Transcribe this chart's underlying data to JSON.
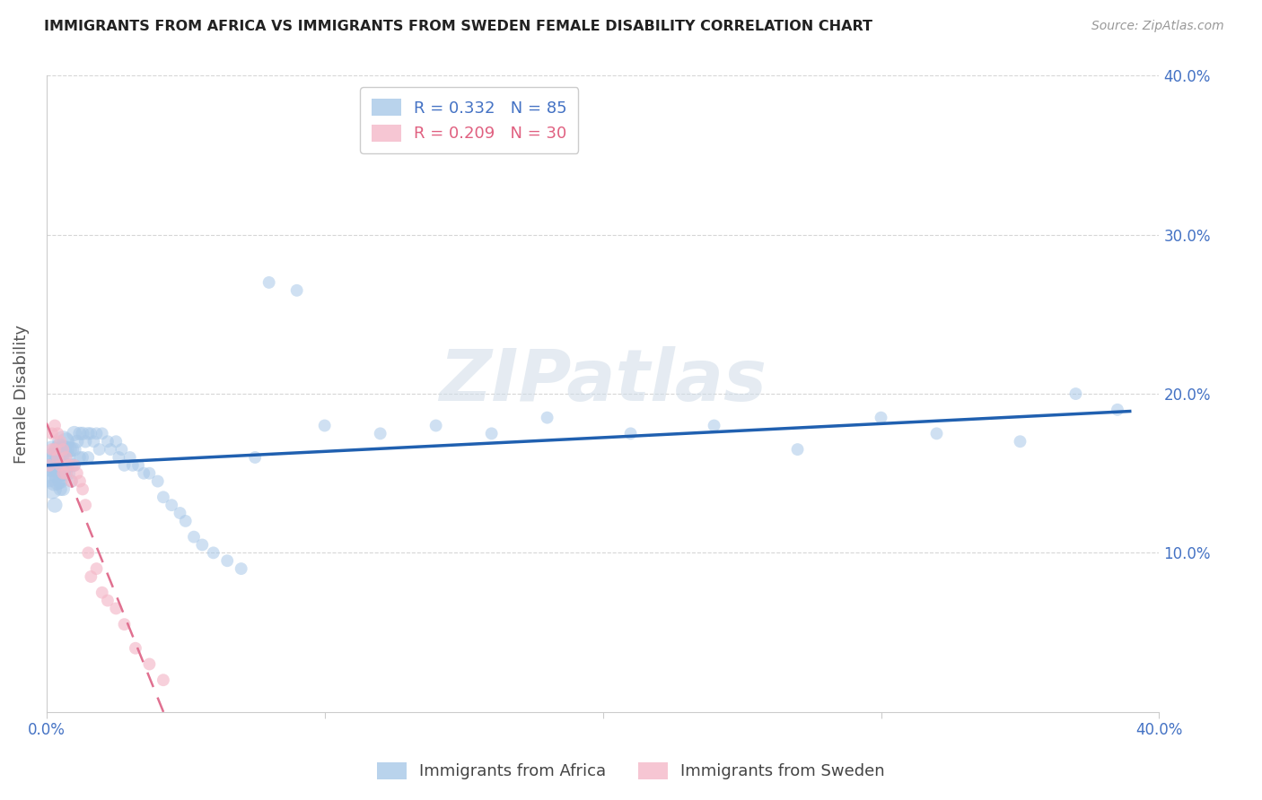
{
  "title": "IMMIGRANTS FROM AFRICA VS IMMIGRANTS FROM SWEDEN FEMALE DISABILITY CORRELATION CHART",
  "source": "Source: ZipAtlas.com",
  "ylabel": "Female Disability",
  "watermark": "ZIPatlas",
  "xlim": [
    0.0,
    0.4
  ],
  "ylim": [
    0.0,
    0.4
  ],
  "africa_color": "#a8c8e8",
  "sweden_color": "#f4b8c8",
  "africa_line_color": "#2060b0",
  "sweden_line_color": "#e07090",
  "africa_x": [
    0.001,
    0.002,
    0.002,
    0.002,
    0.003,
    0.003,
    0.003,
    0.003,
    0.004,
    0.004,
    0.004,
    0.004,
    0.005,
    0.005,
    0.005,
    0.005,
    0.005,
    0.006,
    0.006,
    0.006,
    0.006,
    0.006,
    0.007,
    0.007,
    0.007,
    0.007,
    0.008,
    0.008,
    0.008,
    0.009,
    0.009,
    0.009,
    0.01,
    0.01,
    0.01,
    0.011,
    0.012,
    0.012,
    0.013,
    0.013,
    0.014,
    0.015,
    0.015,
    0.016,
    0.017,
    0.018,
    0.019,
    0.02,
    0.022,
    0.023,
    0.025,
    0.026,
    0.027,
    0.028,
    0.03,
    0.031,
    0.033,
    0.035,
    0.037,
    0.04,
    0.042,
    0.045,
    0.048,
    0.05,
    0.053,
    0.056,
    0.06,
    0.065,
    0.07,
    0.075,
    0.08,
    0.09,
    0.1,
    0.12,
    0.14,
    0.16,
    0.18,
    0.21,
    0.24,
    0.27,
    0.3,
    0.32,
    0.35,
    0.37,
    0.385
  ],
  "africa_y": [
    0.15,
    0.155,
    0.14,
    0.165,
    0.16,
    0.145,
    0.155,
    0.13,
    0.155,
    0.15,
    0.145,
    0.165,
    0.165,
    0.155,
    0.16,
    0.145,
    0.14,
    0.17,
    0.165,
    0.155,
    0.15,
    0.14,
    0.17,
    0.165,
    0.155,
    0.15,
    0.165,
    0.16,
    0.15,
    0.165,
    0.155,
    0.145,
    0.175,
    0.165,
    0.155,
    0.17,
    0.175,
    0.16,
    0.175,
    0.16,
    0.17,
    0.175,
    0.16,
    0.175,
    0.17,
    0.175,
    0.165,
    0.175,
    0.17,
    0.165,
    0.17,
    0.16,
    0.165,
    0.155,
    0.16,
    0.155,
    0.155,
    0.15,
    0.15,
    0.145,
    0.135,
    0.13,
    0.125,
    0.12,
    0.11,
    0.105,
    0.1,
    0.095,
    0.09,
    0.16,
    0.27,
    0.265,
    0.18,
    0.175,
    0.18,
    0.175,
    0.185,
    0.175,
    0.18,
    0.165,
    0.185,
    0.175,
    0.17,
    0.2,
    0.19
  ],
  "africa_size": [
    500,
    350,
    250,
    200,
    300,
    250,
    200,
    150,
    350,
    250,
    200,
    150,
    300,
    250,
    200,
    150,
    120,
    300,
    200,
    180,
    150,
    120,
    200,
    180,
    150,
    120,
    180,
    150,
    120,
    150,
    130,
    110,
    150,
    130,
    110,
    120,
    120,
    100,
    120,
    100,
    110,
    110,
    100,
    100,
    100,
    100,
    100,
    100,
    100,
    100,
    100,
    100,
    100,
    100,
    100,
    100,
    100,
    100,
    100,
    100,
    100,
    100,
    100,
    100,
    100,
    100,
    100,
    100,
    100,
    100,
    100,
    100,
    100,
    100,
    100,
    100,
    100,
    100,
    100,
    100,
    100,
    100,
    100,
    100,
    100
  ],
  "sweden_x": [
    0.001,
    0.002,
    0.002,
    0.003,
    0.003,
    0.004,
    0.004,
    0.005,
    0.005,
    0.006,
    0.006,
    0.007,
    0.007,
    0.008,
    0.009,
    0.01,
    0.011,
    0.012,
    0.013,
    0.014,
    0.015,
    0.016,
    0.018,
    0.02,
    0.022,
    0.025,
    0.028,
    0.032,
    0.037,
    0.042
  ],
  "sweden_y": [
    0.155,
    0.175,
    0.165,
    0.18,
    0.165,
    0.175,
    0.16,
    0.17,
    0.155,
    0.165,
    0.15,
    0.16,
    0.15,
    0.155,
    0.145,
    0.155,
    0.15,
    0.145,
    0.14,
    0.13,
    0.1,
    0.085,
    0.09,
    0.075,
    0.07,
    0.065,
    0.055,
    0.04,
    0.03,
    0.02
  ],
  "sweden_size": [
    100,
    100,
    100,
    100,
    100,
    100,
    100,
    100,
    100,
    100,
    100,
    100,
    100,
    100,
    100,
    100,
    100,
    100,
    100,
    100,
    100,
    100,
    100,
    100,
    100,
    100,
    100,
    100,
    100,
    100
  ]
}
